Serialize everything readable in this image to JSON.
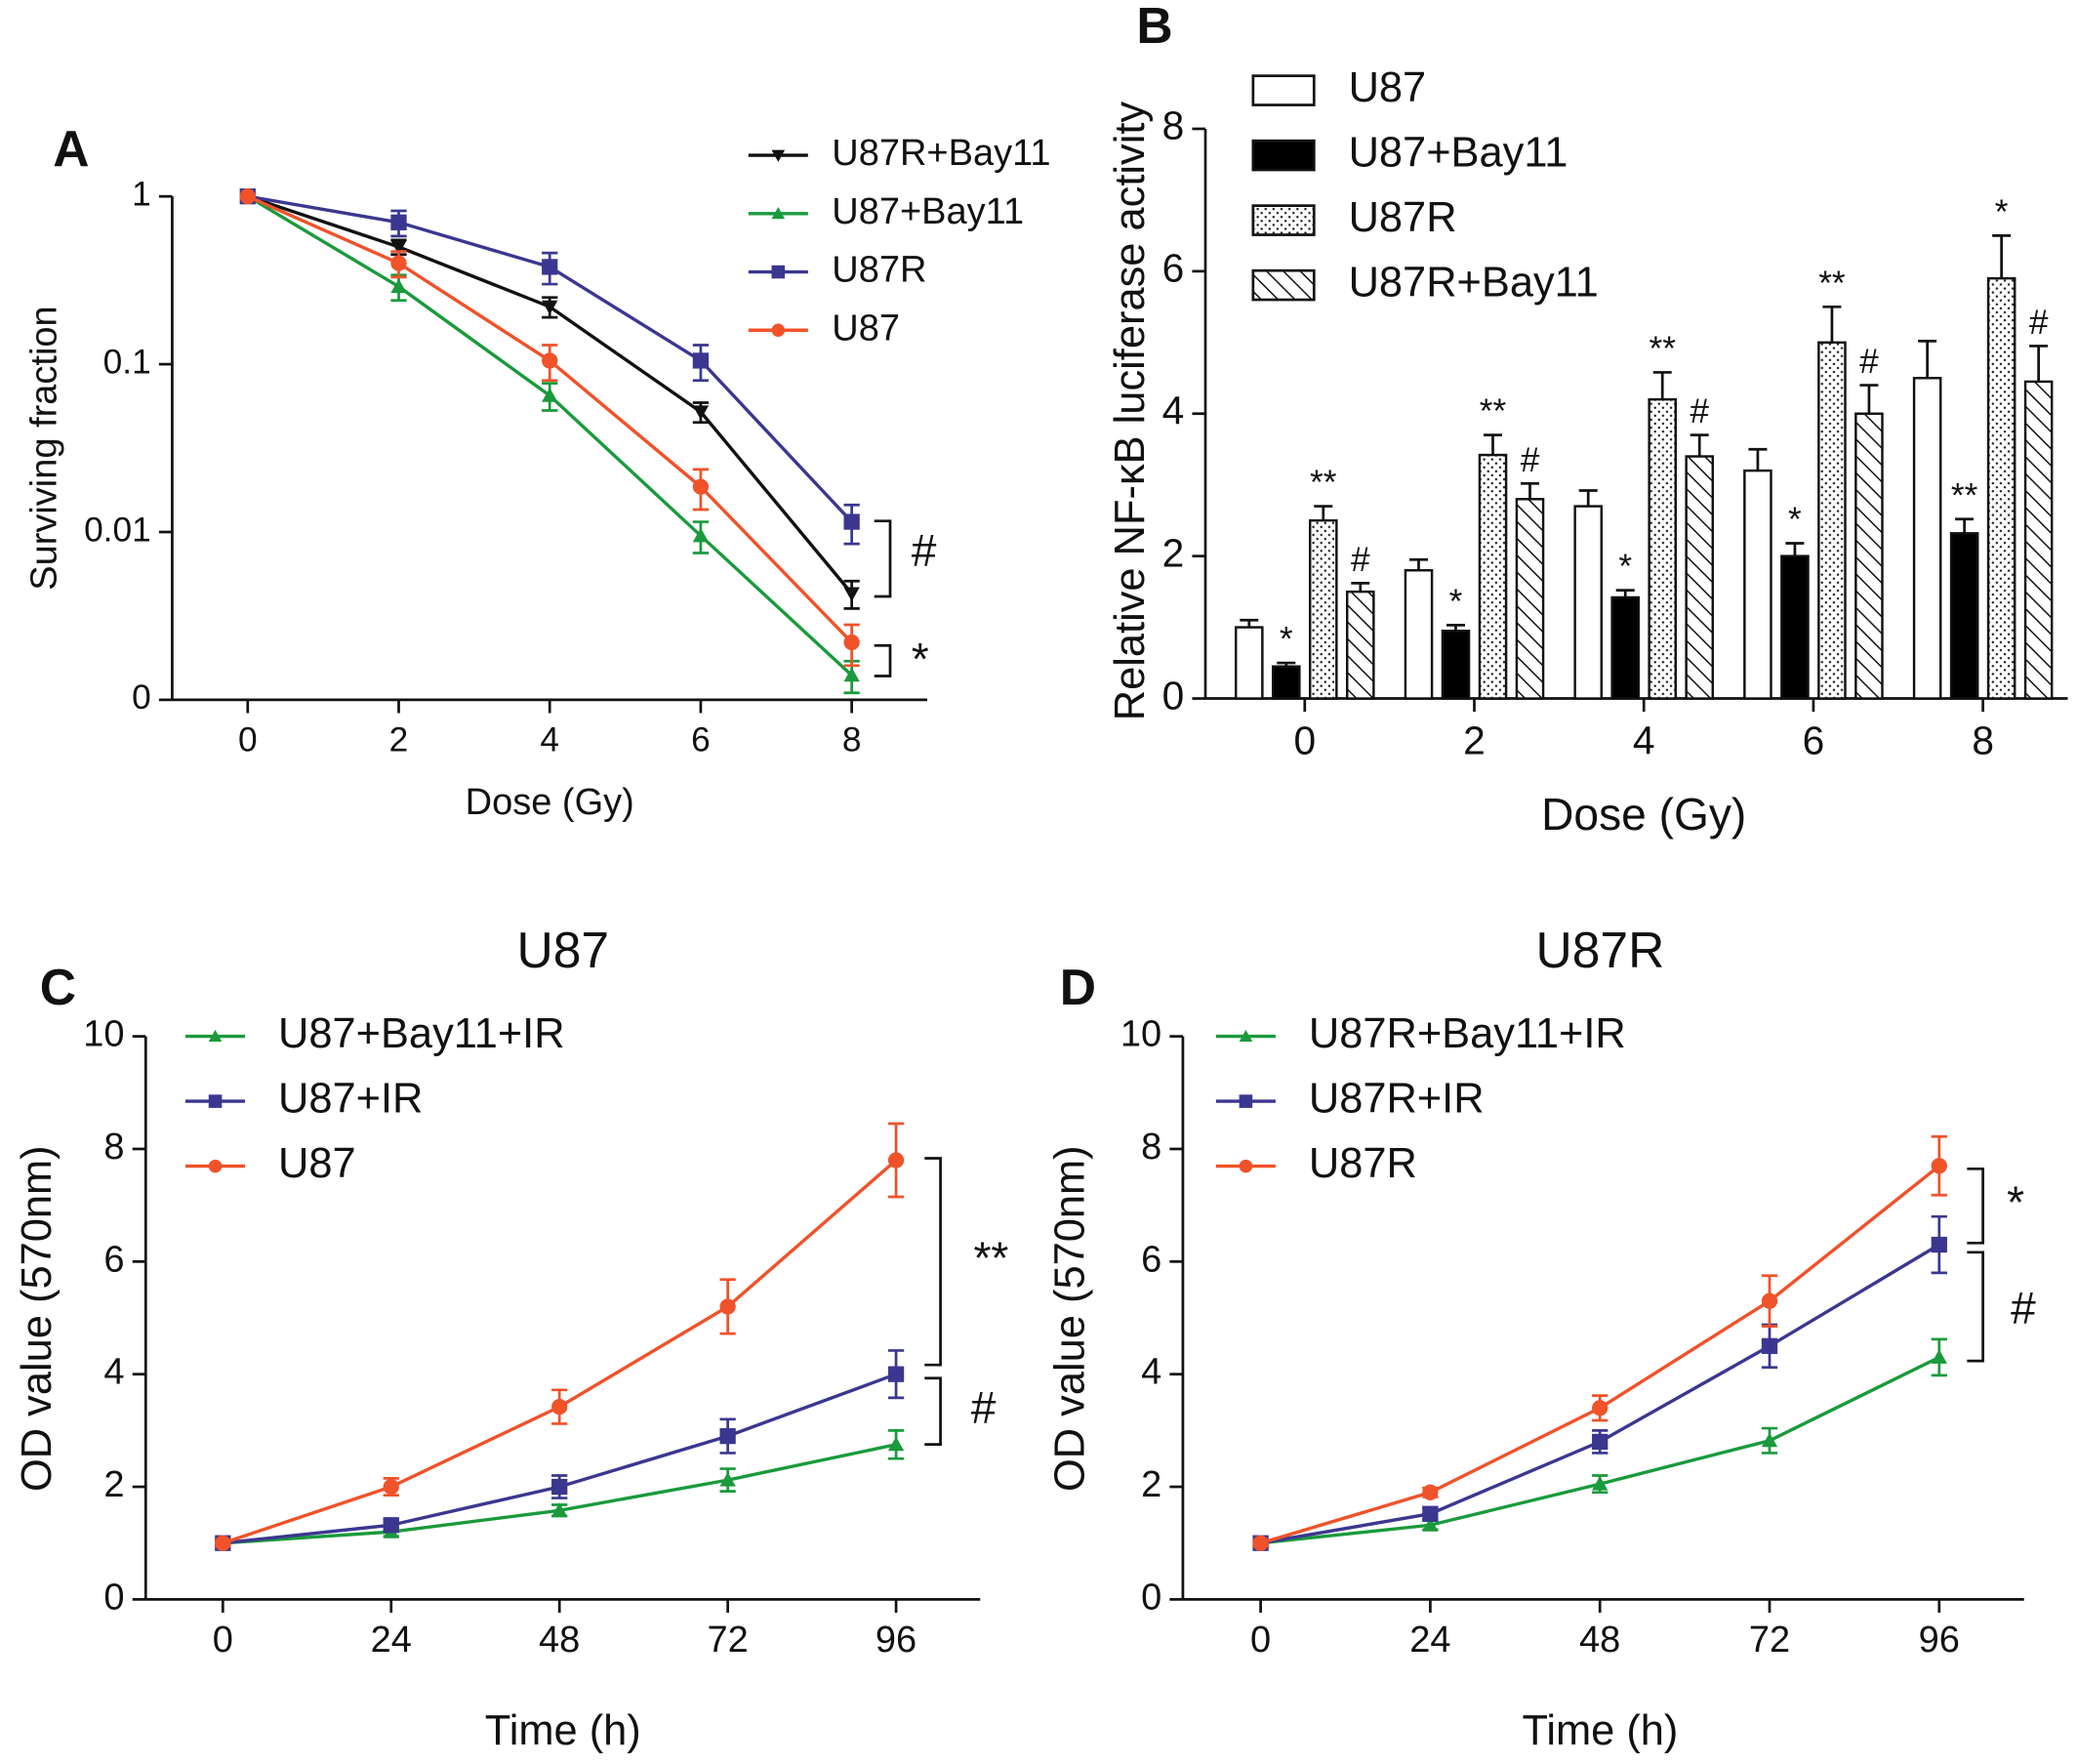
{
  "chart_data": [
    {
      "type": "line",
      "label": "A",
      "yscale": "log",
      "xlabel": "Dose (Gy)",
      "ylabel": "Surviving fraction",
      "x": [
        0,
        2,
        4,
        6,
        8
      ],
      "xlim": [
        -1,
        9
      ],
      "xticks": [
        0,
        2,
        4,
        6,
        8
      ],
      "ylim": [
        0.001,
        1
      ],
      "yticks": [
        {
          "value": 0.001,
          "label": "0"
        },
        0.01,
        0.1,
        1
      ],
      "series": [
        {
          "name": "U87R+Bay11",
          "color": "#111111",
          "marker": "triangle-down",
          "values": [
            1,
            0.5,
            0.22,
            0.052,
            0.0043
          ],
          "errors": [
            0,
            0.05,
            0.03,
            0.007,
            0.0008
          ]
        },
        {
          "name": "U87+Bay11",
          "color": "#1a9a3c",
          "marker": "triangle",
          "values": [
            1,
            0.29,
            0.065,
            0.0095,
            0.0014
          ],
          "errors": [
            0,
            0.05,
            0.012,
            0.002,
            0.0003
          ]
        },
        {
          "name": "U87R",
          "color": "#3b3790",
          "marker": "square",
          "values": [
            1,
            0.7,
            0.38,
            0.105,
            0.0115
          ],
          "errors": [
            0,
            0.12,
            0.08,
            0.025,
            0.003
          ]
        },
        {
          "name": "U87",
          "color": "#f0522a",
          "marker": "circle",
          "values": [
            1,
            0.4,
            0.105,
            0.0186,
            0.0022
          ],
          "errors": [
            0,
            0.07,
            0.025,
            0.005,
            0.0006
          ]
        }
      ],
      "annotations": [
        "#",
        "*"
      ]
    },
    {
      "type": "bar",
      "label": "B",
      "xlabel": "Dose (Gy)",
      "ylabel": "Relative NF-κB luciferase activity",
      "categories": [
        "0",
        "2",
        "4",
        "6",
        "8"
      ],
      "ylim": [
        0,
        8
      ],
      "yticks": [
        0,
        2,
        4,
        6,
        8
      ],
      "series": [
        {
          "name": "U87",
          "color": "#ffffff",
          "pattern": "solid",
          "values": [
            1.0,
            1.8,
            2.7,
            3.2,
            4.5
          ],
          "errors": [
            0.1,
            0.15,
            0.22,
            0.3,
            0.52
          ]
        },
        {
          "name": "U87+Bay11",
          "color": "#000000",
          "pattern": "solid",
          "values": [
            0.45,
            0.95,
            1.42,
            2.0,
            2.32
          ],
          "errors": [
            0.05,
            0.08,
            0.1,
            0.18,
            0.2
          ],
          "significance": [
            "*",
            "*",
            "*",
            "*",
            "**"
          ]
        },
        {
          "name": "U87R",
          "color": "#ffffff",
          "pattern": "dots",
          "values": [
            2.5,
            3.42,
            4.2,
            5.0,
            5.9
          ],
          "errors": [
            0.2,
            0.28,
            0.38,
            0.5,
            0.6
          ],
          "significance": [
            "**",
            "**",
            "**",
            "**",
            "*"
          ]
        },
        {
          "name": "U87R+Bay11",
          "color": "#ffffff",
          "pattern": "hatch",
          "values": [
            1.5,
            2.8,
            3.4,
            4.0,
            4.45
          ],
          "errors": [
            0.12,
            0.22,
            0.3,
            0.4,
            0.5
          ],
          "significance": [
            "#",
            "#",
            "#",
            "#",
            "#"
          ]
        }
      ]
    },
    {
      "type": "line",
      "label": "C",
      "title": "U87",
      "xlabel": "Time (h)",
      "ylabel": "OD value (570nm)",
      "x": [
        0,
        24,
        48,
        72,
        96
      ],
      "xlim": [
        -11,
        108
      ],
      "xticks": [
        0,
        24,
        48,
        72,
        96
      ],
      "ylim": [
        0,
        10
      ],
      "yticks": [
        0,
        2,
        4,
        6,
        8,
        10
      ],
      "series": [
        {
          "name": "U87+Bay11+IR",
          "color": "#1a9a3c",
          "marker": "triangle",
          "values": [
            1,
            1.2,
            1.58,
            2.12,
            2.75
          ],
          "errors": [
            0.05,
            0.08,
            0.1,
            0.2,
            0.25
          ]
        },
        {
          "name": "U87+IR",
          "color": "#3b3790",
          "marker": "square",
          "values": [
            1,
            1.32,
            2.0,
            2.9,
            4.0
          ],
          "errors": [
            0.05,
            0.1,
            0.2,
            0.3,
            0.42
          ]
        },
        {
          "name": "U87",
          "color": "#f0522a",
          "marker": "circle",
          "values": [
            1,
            2.0,
            3.42,
            5.2,
            7.8
          ],
          "errors": [
            0.05,
            0.15,
            0.3,
            0.48,
            0.65
          ]
        }
      ],
      "annotations": [
        "**",
        "#"
      ]
    },
    {
      "type": "line",
      "label": "D",
      "title": "U87R",
      "xlabel": "Time (h)",
      "ylabel": "OD value (570nm)",
      "x": [
        0,
        24,
        48,
        72,
        96
      ],
      "xlim": [
        -11,
        108
      ],
      "xticks": [
        0,
        24,
        48,
        72,
        96
      ],
      "ylim": [
        0,
        10
      ],
      "yticks": [
        0,
        2,
        4,
        6,
        8,
        10
      ],
      "series": [
        {
          "name": "U87R+Bay11+IR",
          "color": "#1a9a3c",
          "marker": "triangle",
          "values": [
            1,
            1.32,
            2.05,
            2.82,
            4.3
          ],
          "errors": [
            0.05,
            0.08,
            0.15,
            0.22,
            0.32
          ]
        },
        {
          "name": "U87R+IR",
          "color": "#3b3790",
          "marker": "square",
          "values": [
            1,
            1.52,
            2.8,
            4.5,
            6.3
          ],
          "errors": [
            0.05,
            0.1,
            0.2,
            0.38,
            0.5
          ]
        },
        {
          "name": "U87R",
          "color": "#f0522a",
          "marker": "circle",
          "values": [
            1,
            1.9,
            3.4,
            5.3,
            7.7
          ],
          "errors": [
            0.05,
            0.08,
            0.22,
            0.45,
            0.52
          ]
        }
      ],
      "annotations": [
        "*",
        "#"
      ]
    }
  ]
}
